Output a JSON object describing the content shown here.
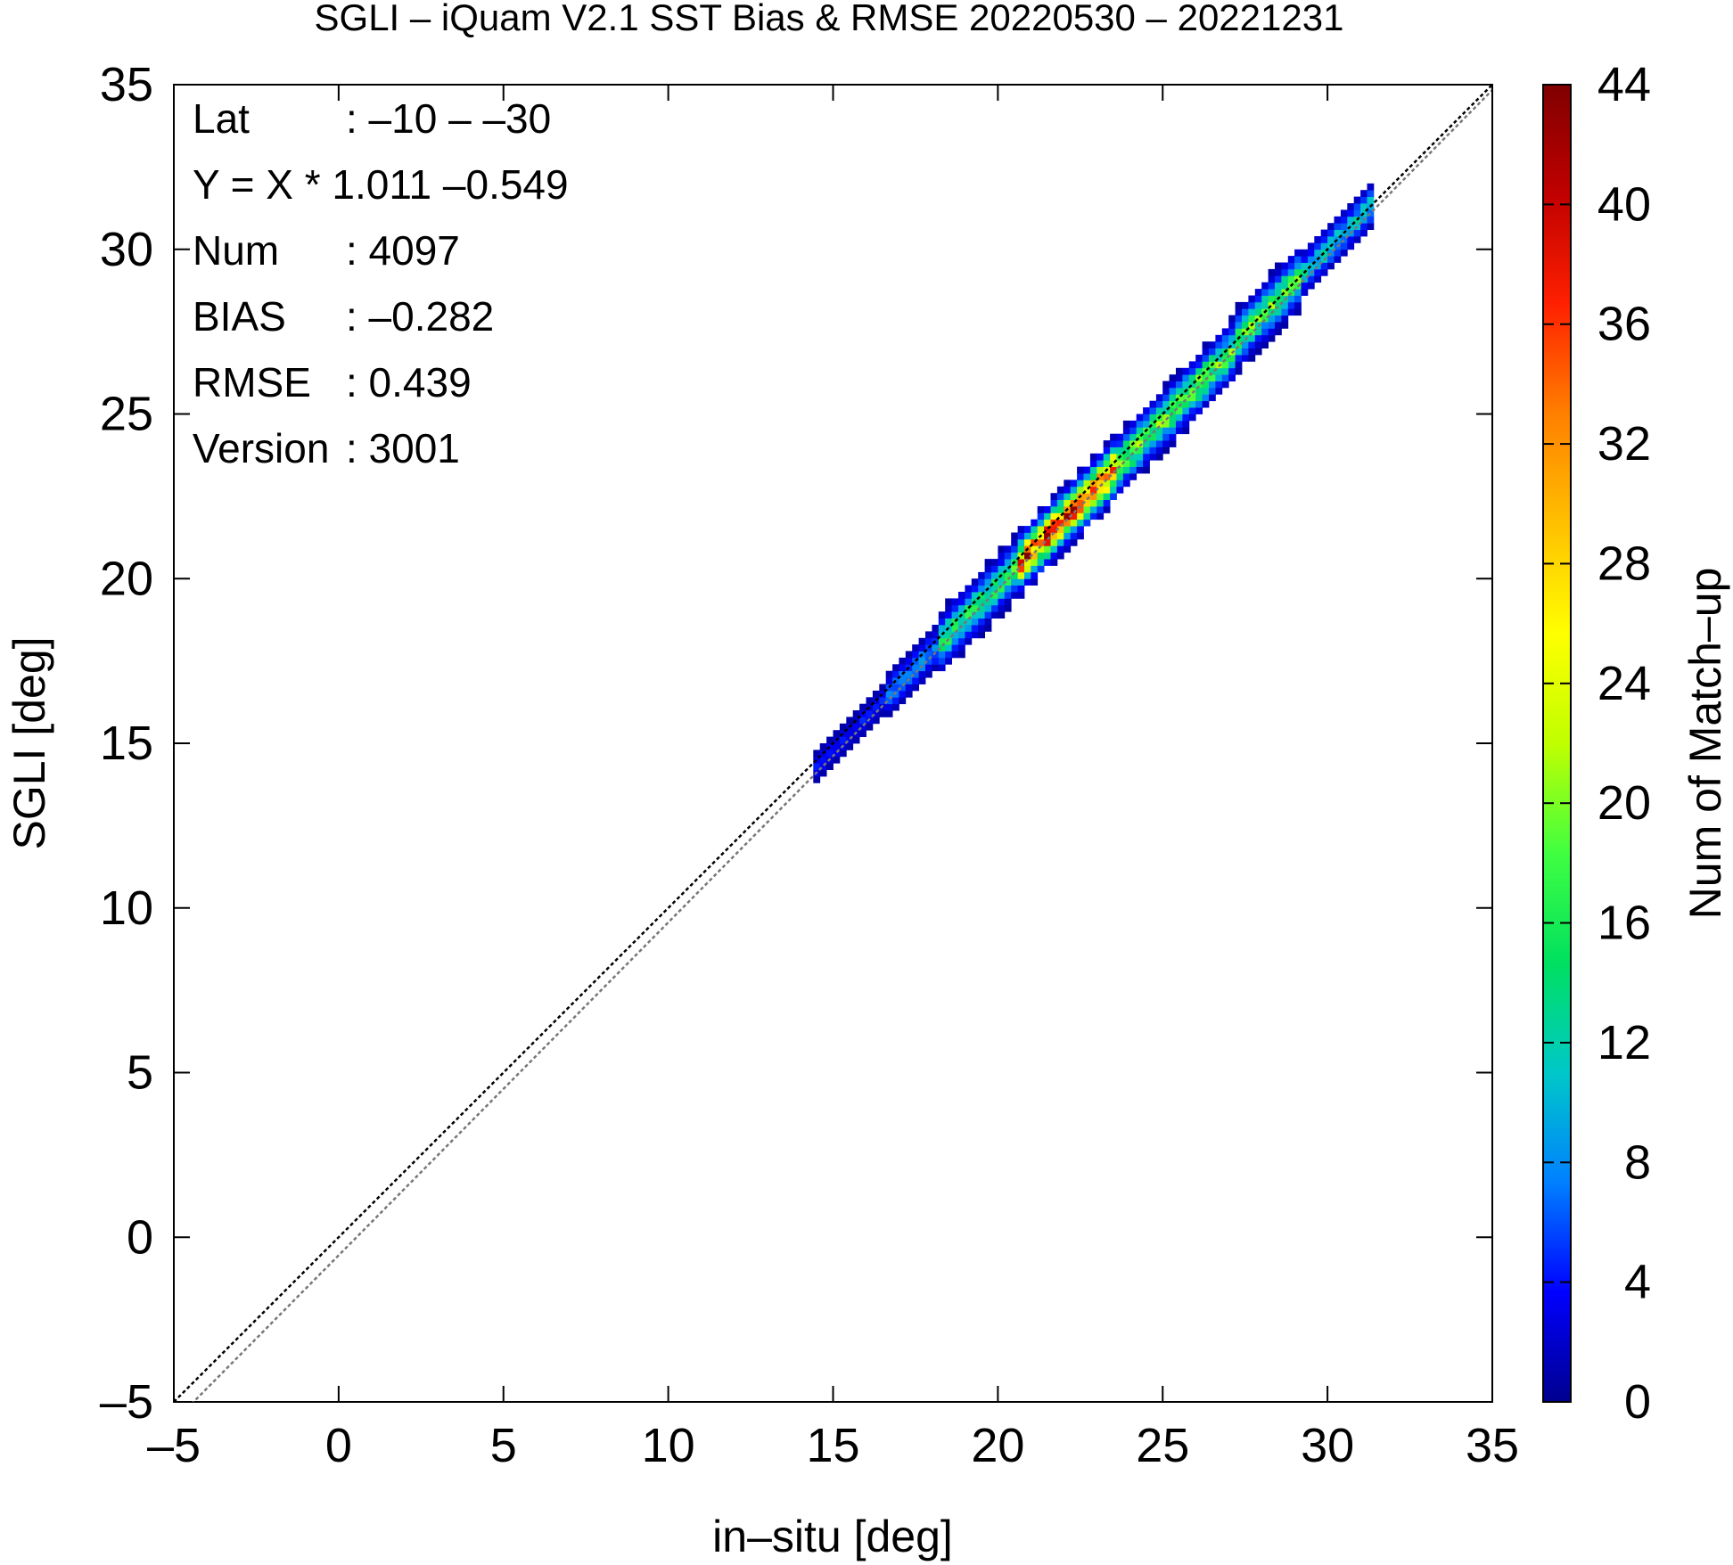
{
  "chart_data": {
    "type": "heatmap",
    "title": "SGLI – iQuam V2.1 SST Bias & RMSE 20220530 – 20221231",
    "xlabel": "in–situ [deg]",
    "ylabel": "SGLI [deg]",
    "xlim": [
      -5,
      35
    ],
    "ylim": [
      -5,
      35
    ],
    "x_ticks": [
      "–5",
      "0",
      "5",
      "10",
      "15",
      "20",
      "25",
      "30",
      "35"
    ],
    "y_ticks": [
      "–5",
      "0",
      "5",
      "10",
      "15",
      "20",
      "25",
      "30",
      "35"
    ],
    "x_tick_values": [
      -5,
      0,
      5,
      10,
      15,
      20,
      25,
      30,
      35
    ],
    "y_tick_values": [
      -5,
      0,
      5,
      10,
      15,
      20,
      25,
      30,
      35
    ],
    "grid": false,
    "colorbar": {
      "label": "Num of Match–up",
      "min": 0,
      "max": 44,
      "ticks": [
        "0",
        "4",
        "8",
        "12",
        "16",
        "20",
        "24",
        "28",
        "32",
        "36",
        "40",
        "44"
      ],
      "tick_values": [
        0,
        4,
        8,
        12,
        16,
        20,
        24,
        28,
        32,
        36,
        40,
        44
      ],
      "colormap": [
        "#00008f",
        "#0000ff",
        "#0080ff",
        "#00c8c8",
        "#00e060",
        "#40ff40",
        "#c0ff00",
        "#ffff00",
        "#ffc000",
        "#ff8000",
        "#ff2000",
        "#c00000",
        "#800000"
      ]
    },
    "stats": [
      {
        "key": "Lat",
        "value": ": –10 – –30"
      },
      {
        "key": "Y = X * 1.011 –0.549",
        "value": ""
      },
      {
        "key": "Num",
        "value": ": 4097"
      },
      {
        "key": "BIAS",
        "value": ": –0.282"
      },
      {
        "key": "RMSE",
        "value": ": 0.439"
      },
      {
        "key": "Version",
        "value": ": 3001"
      }
    ],
    "lines": [
      {
        "name": "1:1 line",
        "slope": 1.0,
        "intercept": 0.0,
        "color": "#000000",
        "style": "dotted"
      },
      {
        "name": "regression",
        "slope": 1.011,
        "intercept": -0.549,
        "color": "#777777",
        "style": "dotted"
      }
    ],
    "density_profile": {
      "x_start": 14.4,
      "x_end": 31.2,
      "bin_size": 0.2,
      "peak_center_x": 22.3,
      "peak_count": 44,
      "segments": [
        {
          "x": [
            14.4,
            16.5
          ],
          "max_count": 5,
          "width_bins": 2
        },
        {
          "x": [
            16.5,
            18.0
          ],
          "max_count": 10,
          "width_bins": 3
        },
        {
          "x": [
            18.0,
            20.5
          ],
          "max_count": 20,
          "width_bins": 4
        },
        {
          "x": [
            20.5,
            23.5
          ],
          "max_count": 44,
          "width_bins": 4
        },
        {
          "x": [
            23.5,
            26.5
          ],
          "max_count": 24,
          "width_bins": 4
        },
        {
          "x": [
            26.5,
            29.0
          ],
          "max_count": 22,
          "width_bins": 4
        },
        {
          "x": [
            29.0,
            31.2
          ],
          "max_count": 14,
          "width_bins": 3
        }
      ]
    }
  }
}
